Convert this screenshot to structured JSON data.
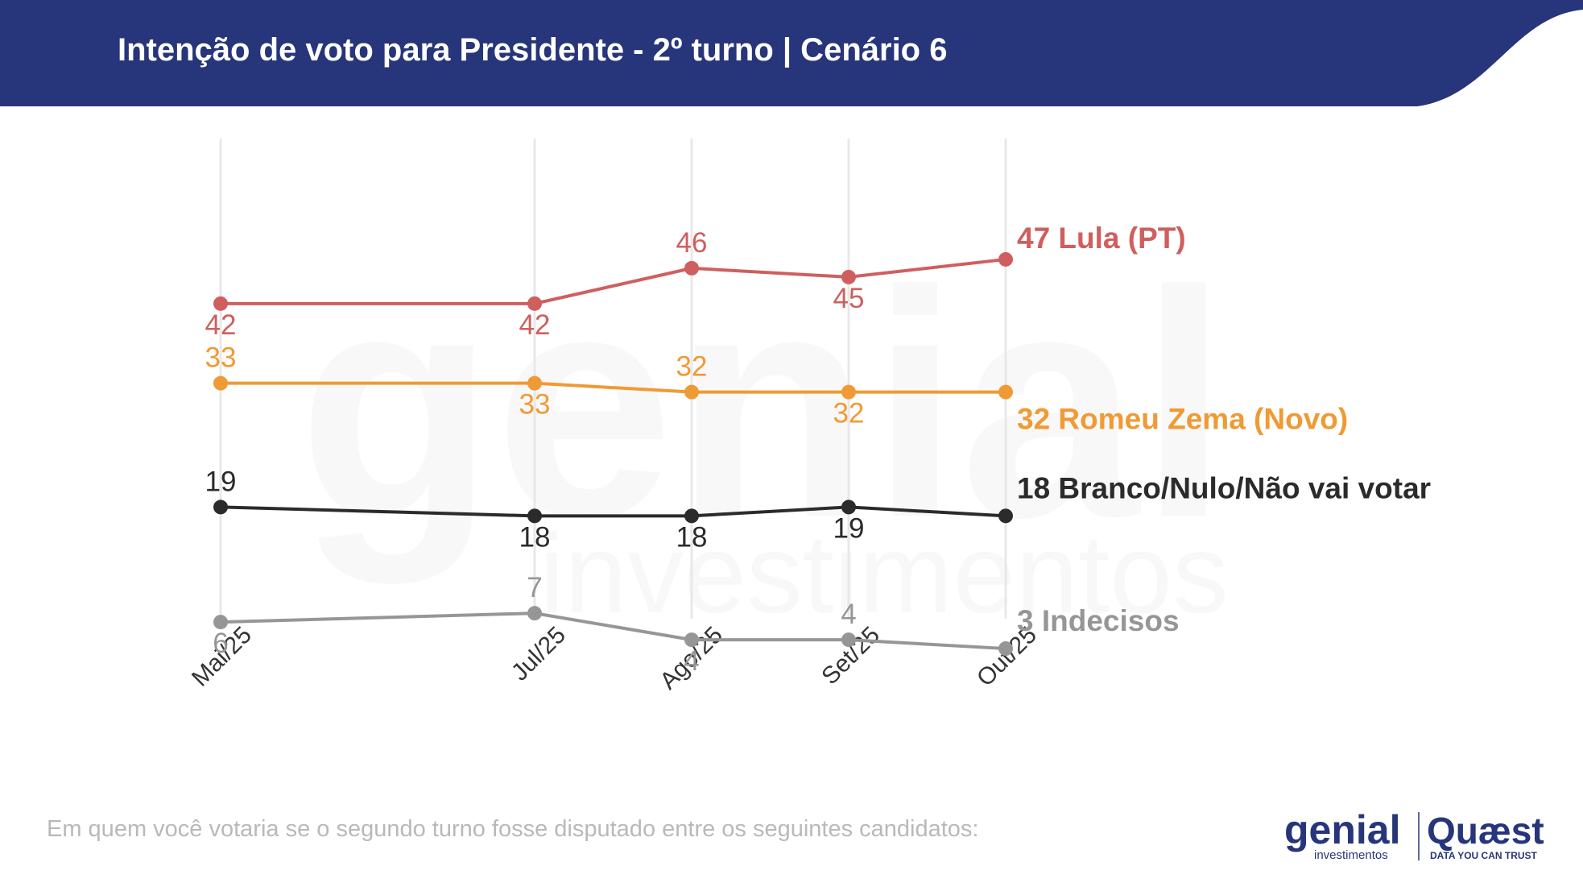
{
  "header": {
    "title": "Intenção de voto para Presidente - 2º turno | Cenário 6",
    "band_color": "#27357a"
  },
  "watermark": {
    "brand": "genial",
    "sub": "investimentos"
  },
  "footer": {
    "question": "Em quem você votaria se o segundo turno fosse disputado entre os seguintes candidatos:"
  },
  "logos": {
    "genial": {
      "name": "genial",
      "sub": "investimentos",
      "color": "#27357a"
    },
    "quaest": {
      "name": "Quæst",
      "tagline": "DATA YOU CAN TRUST",
      "color": "#27357a"
    }
  },
  "chart_data": {
    "type": "line",
    "categories": [
      "Mai/25",
      "Jul/25",
      "Ago/25",
      "Set/25",
      "Out/25"
    ],
    "x_positions_months": [
      0,
      2,
      3,
      4,
      5
    ],
    "ylim": [
      0,
      50
    ],
    "grid": "vertical",
    "series": [
      {
        "name": "Lula (PT)",
        "end_label": "47 Lula (PT)",
        "color": "#cf5f5f",
        "values": [
          42,
          42,
          46,
          45,
          47
        ],
        "label_pos": [
          "below",
          "below",
          "above",
          "below",
          "none"
        ]
      },
      {
        "name": "Romeu Zema (Novo)",
        "end_label": "32 Romeu Zema (Novo)",
        "color": "#f09a35",
        "values": [
          33,
          33,
          32,
          32,
          32
        ],
        "label_pos": [
          "above",
          "below",
          "above",
          "below",
          "none"
        ]
      },
      {
        "name": "Branco/Nulo/Não vai votar",
        "end_label": "18 Branco/Nulo/Não vai votar",
        "color": "#2b2b2b",
        "values": [
          19,
          18,
          18,
          19,
          18
        ],
        "label_pos": [
          "above",
          "below",
          "below",
          "below",
          "none"
        ]
      },
      {
        "name": "Indecisos",
        "end_label": "3 Indecisos",
        "color": "#969696",
        "values": [
          6,
          7,
          4,
          4,
          3
        ],
        "label_pos": [
          "below",
          "above",
          "below",
          "above",
          "none"
        ]
      }
    ]
  }
}
